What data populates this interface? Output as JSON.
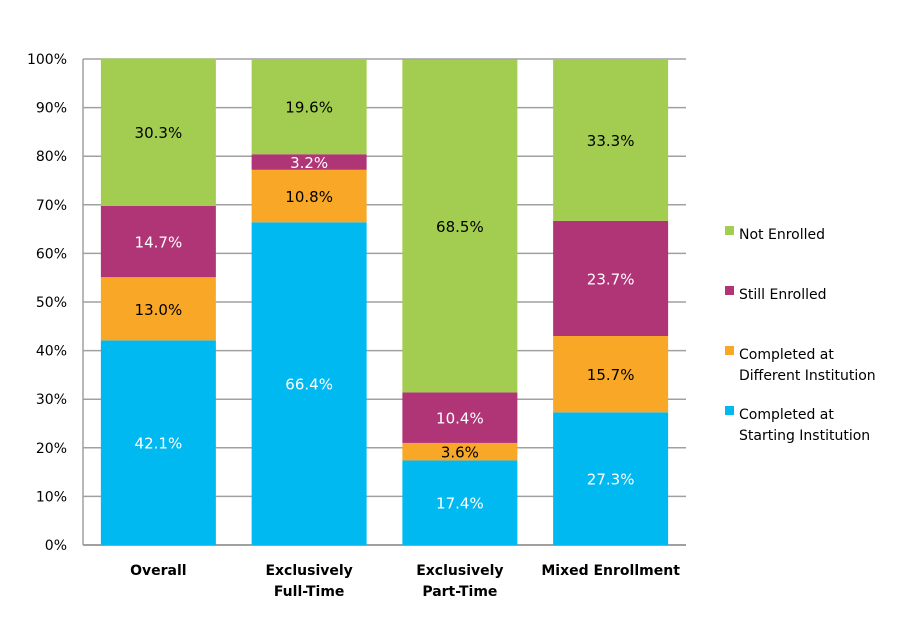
{
  "chart_data": {
    "type": "bar",
    "stacked": true,
    "categories": [
      "Overall",
      "Exclusively Full-Time",
      "Exclusively Part-Time",
      "Mixed Enrollment"
    ],
    "category_lines": [
      [
        "Overall"
      ],
      [
        "Exclusively",
        "Full-Time"
      ],
      [
        "Exclusively",
        "Part-Time"
      ],
      [
        "Mixed Enrollment"
      ]
    ],
    "series": [
      {
        "name": "Completed at Starting Institution",
        "legend_lines": [
          "Completed at",
          "Starting Institution"
        ],
        "color": "#00B9F1",
        "label_color": "#ffffff",
        "values": [
          42.1,
          66.4,
          17.4,
          27.3
        ]
      },
      {
        "name": "Completed at Different Institution",
        "legend_lines": [
          "Completed at",
          "Different Institution"
        ],
        "color": "#F9A727",
        "label_color": "#000000",
        "values": [
          13.0,
          10.8,
          3.6,
          15.7
        ]
      },
      {
        "name": "Still Enrolled",
        "legend_lines": [
          "Still Enrolled"
        ],
        "color": "#B03576",
        "label_color": "#ffffff",
        "values": [
          14.7,
          3.2,
          10.4,
          23.7
        ]
      },
      {
        "name": "Not Enrolled",
        "legend_lines": [
          "Not Enrolled"
        ],
        "color": "#A3CD50",
        "label_color": "#000000",
        "values": [
          30.3,
          19.6,
          68.5,
          33.3
        ]
      }
    ],
    "ylim": [
      0,
      100
    ],
    "yticks": [
      "0%",
      "10%",
      "20%",
      "30%",
      "40%",
      "50%",
      "60%",
      "70%",
      "80%",
      "90%",
      "100%"
    ],
    "grid": true,
    "legend_placement": "right",
    "title": "",
    "xlabel": "",
    "ylabel": ""
  }
}
